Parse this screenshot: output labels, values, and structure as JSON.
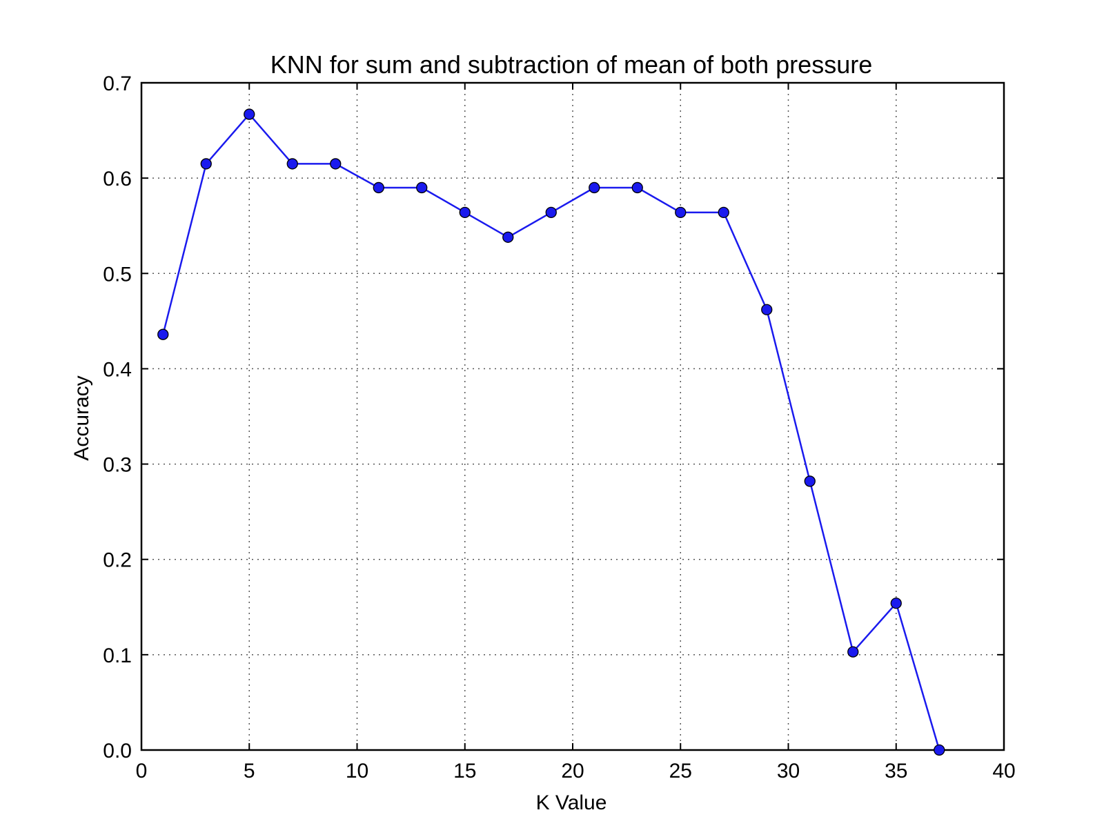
{
  "chart_data": {
    "type": "line",
    "title": "KNN for sum and subtraction of mean of both pressure",
    "xlabel": "K Value",
    "ylabel": "Accuracy",
    "xlim": [
      0,
      40
    ],
    "ylim": [
      0,
      0.7
    ],
    "xticks": [
      "0",
      "5",
      "10",
      "15",
      "20",
      "25",
      "30",
      "35",
      "40"
    ],
    "yticks": [
      "0.0",
      "0.1",
      "0.2",
      "0.3",
      "0.4",
      "0.5",
      "0.6",
      "0.7"
    ],
    "grid": true,
    "series": [
      {
        "color": "#1a1aee",
        "marker": "circle",
        "x": [
          1,
          3,
          5,
          7,
          9,
          11,
          13,
          15,
          17,
          19,
          21,
          23,
          25,
          27,
          29,
          31,
          33,
          35,
          37
        ],
        "y": [
          0.436,
          0.615,
          0.667,
          0.615,
          0.615,
          0.59,
          0.59,
          0.564,
          0.538,
          0.564,
          0.59,
          0.59,
          0.564,
          0.564,
          0.462,
          0.282,
          0.103,
          0.154,
          0.0
        ]
      }
    ]
  }
}
